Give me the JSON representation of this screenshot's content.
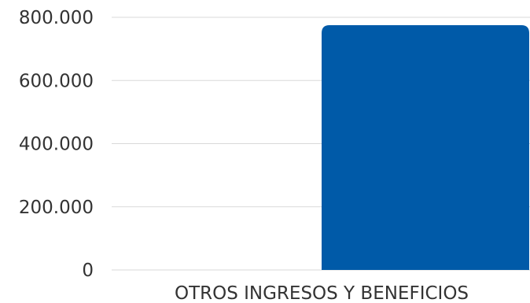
{
  "chart_data": {
    "type": "bar",
    "categories": [
      "OTROS INGRESOS Y BENEFICIOS"
    ],
    "values": [
      775000
    ],
    "yticks": [
      0,
      200000,
      400000,
      600000,
      800000
    ],
    "ytick_labels": [
      "0",
      "200.000",
      "400.000",
      "600.000",
      "800.000"
    ],
    "ylim": [
      0,
      800000
    ],
    "grid": true,
    "bar_color": "#005aa8"
  }
}
